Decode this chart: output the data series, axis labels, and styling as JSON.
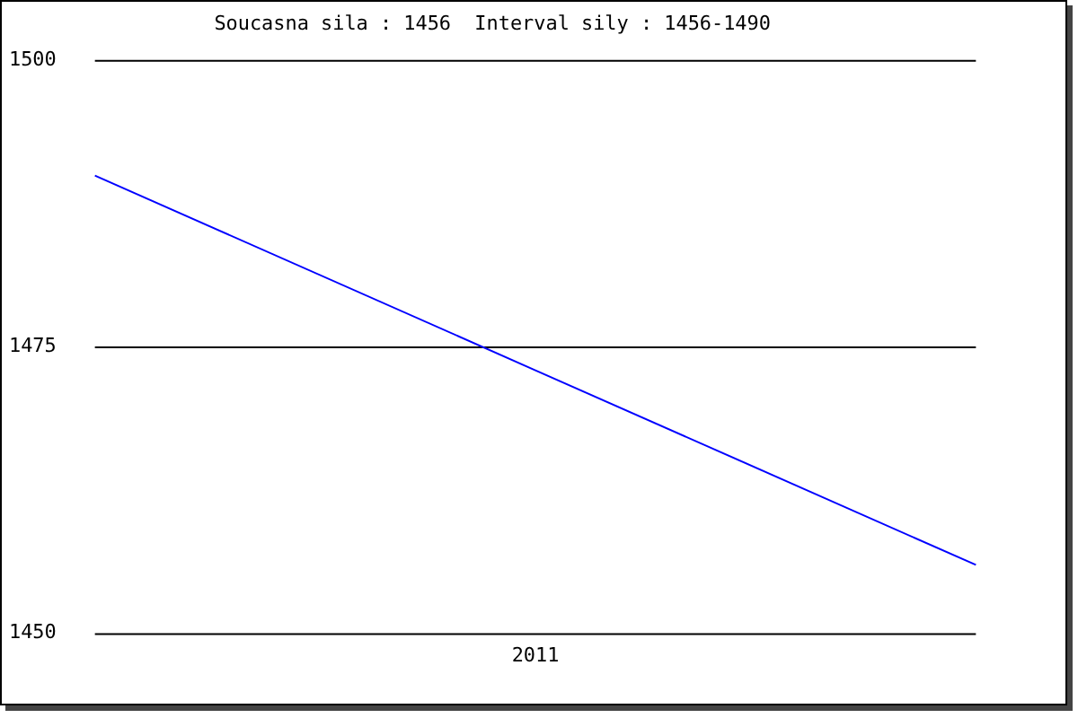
{
  "chart_data": {
    "type": "line",
    "title": "Soucasna sila : 1456  Interval sily : 1456-1490",
    "categories": [
      null,
      "2011",
      null
    ],
    "series": [
      {
        "color": "#0000ff",
        "values": [
          1490,
          1473,
          1456
        ]
      }
    ],
    "ylim": [
      1450,
      1500
    ],
    "yticks": [
      1450,
      1475,
      1500
    ],
    "grid": "y",
    "legend": false,
    "marker": "none"
  }
}
